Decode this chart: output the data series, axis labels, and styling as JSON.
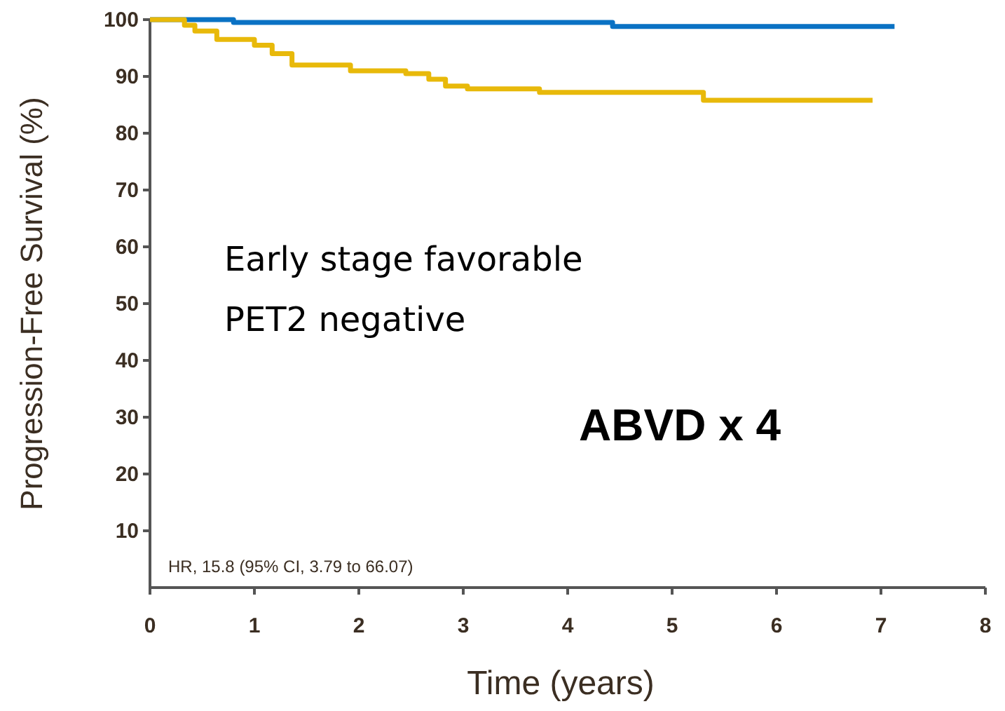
{
  "chart_data": {
    "type": "step",
    "xlabel": "Time (years)",
    "ylabel": "Progression-Free Survival  (%)",
    "xlim": [
      0,
      8
    ],
    "xticks": [
      0,
      1,
      2,
      3,
      4,
      5,
      6,
      7,
      8
    ],
    "ylim": [
      0,
      100
    ],
    "yticks": [
      10,
      20,
      30,
      40,
      50,
      60,
      70,
      80,
      90,
      100
    ],
    "line_style": "solid",
    "marker": "none",
    "series": [
      {
        "color": "#0a72c4",
        "x": [
          0,
          0.8,
          4.43,
          7.13
        ],
        "values": [
          100,
          99.5,
          98.8,
          98.8
        ]
      },
      {
        "color": "#e8b90a",
        "x": [
          0,
          0.33,
          0.43,
          0.64,
          1.0,
          1.17,
          1.36,
          1.92,
          2.45,
          2.67,
          2.83,
          3.04,
          3.73,
          5.3,
          6.92
        ],
        "values": [
          100,
          99,
          98,
          96.5,
          95.5,
          94,
          92,
          91,
          90.5,
          89.5,
          88.3,
          87.8,
          87.2,
          85.8,
          85.8
        ]
      }
    ],
    "annotations": [
      "Early stage favorable",
      "PET2 negative",
      "ABVD x 4",
      "HR, 15.8 (95% CI, 3.79 to 66.07)"
    ]
  }
}
